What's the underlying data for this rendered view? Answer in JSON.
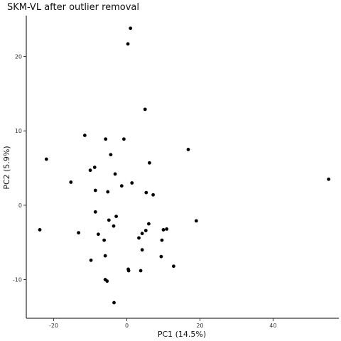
{
  "chart_data": {
    "type": "scatter",
    "title": "SKM-VL after outlier removal",
    "xlabel": "PC1 (14.5%)",
    "ylabel": "PC2 (5.9%)",
    "xlim": [
      -27.5,
      58
    ],
    "ylim": [
      -15.2,
      25.5
    ],
    "xticks": [
      -20,
      0,
      20,
      40
    ],
    "yticks": [
      -10,
      0,
      10,
      20
    ],
    "xtick_labels": [
      "-20",
      "0",
      "20",
      "40"
    ],
    "ytick_labels": [
      "-10",
      "0",
      "10",
      "20"
    ],
    "grid": false,
    "point_color": "#000000",
    "points": [
      {
        "x": 1.0,
        "y": 23.8
      },
      {
        "x": 0.3,
        "y": 21.7
      },
      {
        "x": 5.0,
        "y": 12.9
      },
      {
        "x": -11.5,
        "y": 9.4
      },
      {
        "x": -5.8,
        "y": 8.9
      },
      {
        "x": -0.8,
        "y": 8.9
      },
      {
        "x": 16.8,
        "y": 7.5
      },
      {
        "x": -4.4,
        "y": 6.8
      },
      {
        "x": -22.0,
        "y": 6.2
      },
      {
        "x": 6.2,
        "y": 5.7
      },
      {
        "x": -8.8,
        "y": 5.1
      },
      {
        "x": -10.0,
        "y": 4.7
      },
      {
        "x": -3.2,
        "y": 4.2
      },
      {
        "x": -15.3,
        "y": 3.1
      },
      {
        "x": 1.4,
        "y": 3.0
      },
      {
        "x": -1.4,
        "y": 2.6
      },
      {
        "x": 55.2,
        "y": 3.5
      },
      {
        "x": -8.6,
        "y": 2.0
      },
      {
        "x": -5.2,
        "y": 1.8
      },
      {
        "x": 5.3,
        "y": 1.7
      },
      {
        "x": 7.2,
        "y": 1.4
      },
      {
        "x": -8.6,
        "y": -0.9
      },
      {
        "x": -2.9,
        "y": -1.5
      },
      {
        "x": -4.9,
        "y": -2.0
      },
      {
        "x": 19.0,
        "y": -2.1
      },
      {
        "x": 6.0,
        "y": -2.5
      },
      {
        "x": -3.6,
        "y": -2.8
      },
      {
        "x": 10.0,
        "y": -3.3
      },
      {
        "x": 10.9,
        "y": -3.2
      },
      {
        "x": 5.2,
        "y": -3.4
      },
      {
        "x": -23.8,
        "y": -3.3
      },
      {
        "x": -13.2,
        "y": -3.7
      },
      {
        "x": 4.2,
        "y": -3.8
      },
      {
        "x": -7.8,
        "y": -3.9
      },
      {
        "x": 3.3,
        "y": -4.4
      },
      {
        "x": -6.2,
        "y": -4.7
      },
      {
        "x": 9.6,
        "y": -4.7
      },
      {
        "x": 4.2,
        "y": -6.0
      },
      {
        "x": -5.9,
        "y": -6.8
      },
      {
        "x": 9.4,
        "y": -6.9
      },
      {
        "x": -9.8,
        "y": -7.4
      },
      {
        "x": 12.8,
        "y": -8.2
      },
      {
        "x": 0.4,
        "y": -8.6
      },
      {
        "x": 0.5,
        "y": -8.8
      },
      {
        "x": 3.8,
        "y": -8.8
      },
      {
        "x": -5.9,
        "y": -10.0
      },
      {
        "x": -5.4,
        "y": -10.2
      },
      {
        "x": -3.5,
        "y": -13.1
      }
    ]
  }
}
